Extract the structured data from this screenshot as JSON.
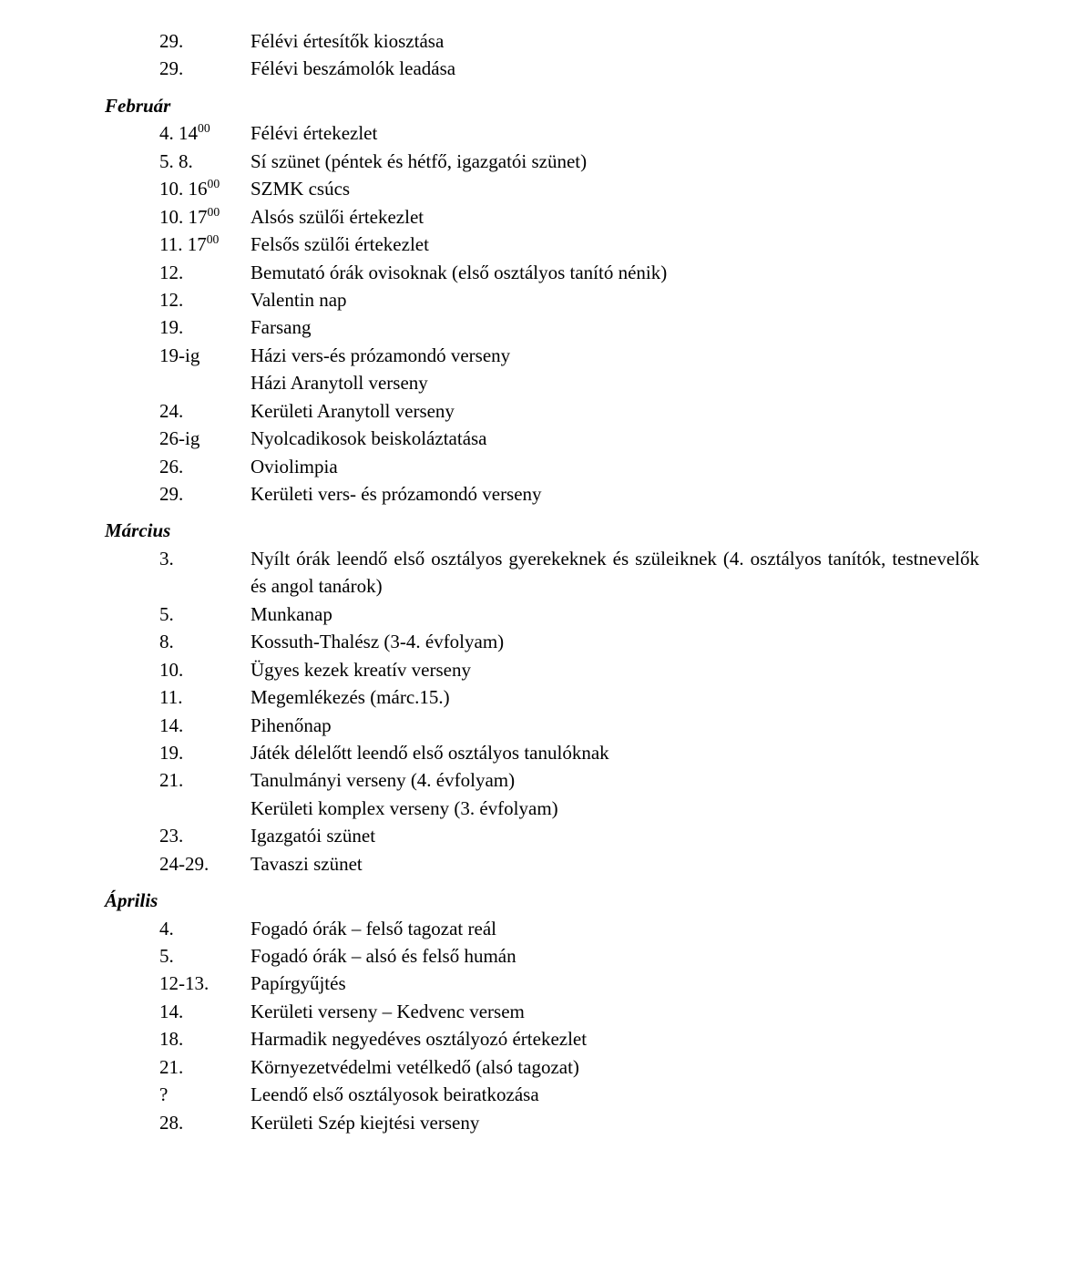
{
  "top_rows": [
    {
      "date": "29.",
      "desc": "Félévi értesítők kiosztása"
    },
    {
      "date": "29.",
      "desc": "Félévi beszámolók leadása"
    }
  ],
  "sections": [
    {
      "title": "Február",
      "rows": [
        {
          "date": "4. 14",
          "sup": "00",
          "desc": "Félévi értekezlet"
        },
        {
          "date": "5. 8.",
          "desc": "Sí szünet (péntek és hétfő, igazgatói szünet)"
        },
        {
          "date": "10. 16",
          "sup": "00",
          "desc": "SZMK csúcs"
        },
        {
          "date": "10. 17",
          "sup": "00",
          "desc": "Alsós szülői értekezlet"
        },
        {
          "date": "11. 17",
          "sup": "00",
          "desc": "Felsős szülői értekezlet"
        },
        {
          "date": "12.",
          "desc": "Bemutató órák ovisoknak (első osztályos tanító nénik)"
        },
        {
          "date": "12.",
          "desc": "Valentin nap"
        },
        {
          "date": "19.",
          "desc": "Farsang"
        },
        {
          "date": "19-ig",
          "desc": "Házi vers-és prózamondó verseny"
        },
        {
          "date": "",
          "desc": "Házi Aranytoll verseny"
        },
        {
          "date": "24.",
          "desc": "Kerületi Aranytoll verseny"
        },
        {
          "date": "26-ig",
          "desc": "Nyolcadikosok beiskoláztatása"
        },
        {
          "date": "26.",
          "desc": "Oviolimpia"
        },
        {
          "date": "29.",
          "desc": "Kerületi vers- és prózamondó verseny"
        }
      ]
    },
    {
      "title": "Március",
      "rows": [
        {
          "date": "3.",
          "desc": "Nyílt órák leendő első osztályos gyerekeknek és szüleiknek (4. osztályos tanítók, testnevelők és angol tanárok)",
          "justify": true
        },
        {
          "date": "5.",
          "desc": "Munkanap"
        },
        {
          "date": "8.",
          "desc": "Kossuth-Thalész (3-4. évfolyam)"
        },
        {
          "date": "10.",
          "desc": "Ügyes kezek kreatív verseny"
        },
        {
          "date": "11.",
          "desc": "Megemlékezés (márc.15.)"
        },
        {
          "date": "14.",
          "desc": "Pihenőnap"
        },
        {
          "date": "19.",
          "desc": "Játék délelőtt leendő első osztályos tanulóknak"
        },
        {
          "date": "21.",
          "desc": "Tanulmányi verseny (4. évfolyam)"
        },
        {
          "date": "",
          "desc": "Kerületi komplex verseny (3. évfolyam)"
        },
        {
          "date": "23.",
          "desc": "Igazgatói szünet"
        },
        {
          "date": "24-29.",
          "desc": "Tavaszi szünet"
        }
      ]
    },
    {
      "title": "Április",
      "rows": [
        {
          "date": "4.",
          "desc": "Fogadó órák – felső tagozat reál"
        },
        {
          "date": "5.",
          "desc": "Fogadó órák – alsó és felső humán"
        },
        {
          "date": "12-13.",
          "desc": "Papírgyűjtés"
        },
        {
          "date": "14.",
          "desc": "Kerületi verseny – Kedvenc versem"
        },
        {
          "date": "18.",
          "desc": "Harmadik negyedéves osztályozó értekezlet"
        },
        {
          "date": "21.",
          "desc": "Környezetvédelmi vetélkedő (alsó tagozat)"
        },
        {
          "date": "?",
          "desc": "Leendő első osztályosok beiratkozása"
        },
        {
          "date": "28.",
          "desc": "Kerületi Szép kiejtési verseny"
        }
      ]
    }
  ]
}
